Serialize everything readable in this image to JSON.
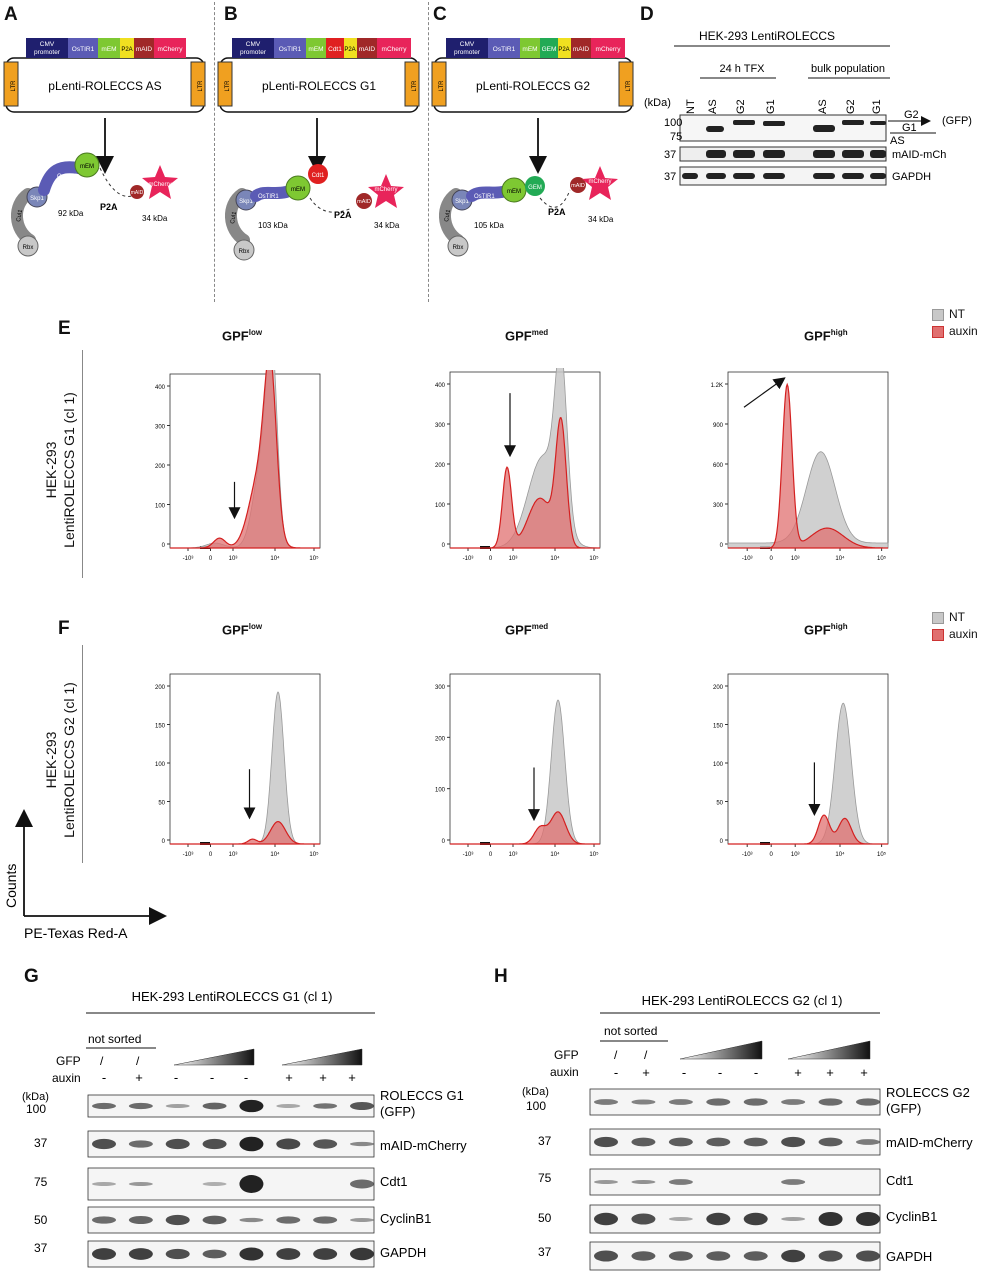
{
  "panels": {
    "A": "A",
    "B": "B",
    "C": "C",
    "D": "D",
    "E": "E",
    "F": "F",
    "G": "G",
    "H": "H"
  },
  "construct": {
    "cmv": "CMV",
    "promoter": "promoter",
    "ostir1": "OsTIR1",
    "mem": "mEM",
    "cdt1": "Cdt1",
    "gem": "GEM",
    "p2a": "P2A",
    "maid": "mAID",
    "mcherry": "mCherry",
    "ltr": "LTR",
    "vectors": [
      "pLenti-ROLECCS AS",
      "pLenti-ROLECCS G1",
      "pLenti-ROLECCS G2"
    ],
    "skp1": "Skp1",
    "cul1": "Cul1",
    "rbx": "Rbx",
    "sizes_left": [
      "92 kDa",
      "103 kDa",
      "105 kDa"
    ],
    "size_right": "34 kDa"
  },
  "panelD": {
    "title": "HEK-293 LentiROLECCS",
    "group1": "24 h TFX",
    "group2": "bulk population",
    "kda": "(kDa)",
    "lanes": [
      "NT",
      "AS",
      "G2",
      "G1",
      "AS",
      "G2",
      "G1"
    ],
    "markers": [
      "100",
      "75",
      "37",
      "37"
    ],
    "labels": [
      "G2",
      "G1",
      "(GFP)",
      "AS",
      "mAID-mCh",
      "GAPDH"
    ]
  },
  "flow": {
    "titles": [
      {
        "base": "GPF",
        "sup": "low"
      },
      {
        "base": "GPF",
        "sup": "med"
      },
      {
        "base": "GPF",
        "sup": "high"
      }
    ],
    "legend": [
      "NT",
      "auxin"
    ],
    "ylabelE": [
      "HEK-293",
      "LentiROLECCS G1 (cl 1)"
    ],
    "ylabelF": [
      "HEK-293",
      "LentiROLECCS G2 (cl 1)"
    ],
    "axis_counts": "Counts",
    "axis_x": "PE-Texas Red-A",
    "xticks": [
      "-10³",
      "0",
      "10³",
      "10⁴",
      "10⁵"
    ],
    "E_yticks": [
      [
        "400",
        "300",
        "200",
        "100",
        "0"
      ],
      [
        "400",
        "300",
        "200",
        "100",
        "0"
      ],
      [
        "1.2K",
        "900",
        "600",
        "300",
        "0"
      ]
    ],
    "F_yticks": [
      [
        "200",
        "150",
        "100",
        "50",
        "0"
      ],
      [
        "300",
        "200",
        "100",
        "0"
      ],
      [
        "200",
        "150",
        "100",
        "50",
        "0"
      ]
    ]
  },
  "panelG": {
    "title": "HEK-293 LentiROLECCS G1 (cl 1)",
    "not_sorted": "not sorted",
    "gfp": "GFP",
    "auxin": "auxin",
    "slash": "/",
    "auxin_vals": [
      "-",
      "+",
      "-",
      "-",
      "-",
      "+",
      "+",
      "+"
    ],
    "kda": "(kDa)",
    "markers": [
      "100",
      "37",
      "75",
      "50",
      "37"
    ],
    "bands": [
      "ROLECCS G1",
      "(GFP)",
      "mAID-mCherry",
      "Cdt1",
      "CyclinB1",
      "GAPDH"
    ]
  },
  "panelH": {
    "title": "HEK-293 LentiROLECCS G2 (cl 1)",
    "not_sorted": "not sorted",
    "gfp": "GFP",
    "auxin": "auxin",
    "slash": "/",
    "auxin_vals": [
      "-",
      "+",
      "-",
      "-",
      "-",
      "+",
      "+",
      "+"
    ],
    "kda": "(kDa)",
    "markers": [
      "100",
      "37",
      "75",
      "50",
      "37"
    ],
    "bands": [
      "ROLECCS G2",
      "(GFP)",
      "mAID-mCherry",
      "Cdt1",
      "CyclinB1",
      "GAPDH"
    ]
  },
  "colors": {
    "nt": "#c8c8c8",
    "auxin": "#e07070",
    "red": "#d42020",
    "navy": "#1f1f6e",
    "ostir": "#5b5bb5",
    "mem": "#7ec832",
    "cdt1": "#e02020",
    "gem": "#22aa55",
    "p2a": "#f0e020",
    "maid": "#a02828",
    "mcherry": "#e8245a",
    "ltr": "#f0a020"
  }
}
